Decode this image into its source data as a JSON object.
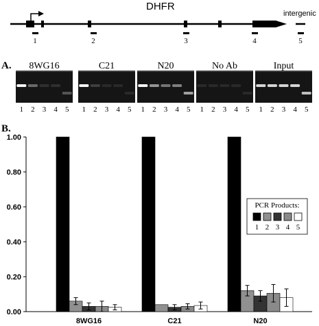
{
  "gene_map": {
    "gene_name": "DHFR",
    "intergenic_label": "intergenic",
    "amplicons": [
      "1",
      "2",
      "3",
      "4",
      "5"
    ]
  },
  "panel_a": {
    "label": "A.",
    "groups": [
      {
        "name": "8WG16",
        "band_intensity": [
          1.0,
          0.35,
          0.08,
          0.08,
          0.25
        ]
      },
      {
        "name": "C21",
        "band_intensity": [
          1.0,
          0.15,
          0.05,
          0.05,
          0.05
        ]
      },
      {
        "name": "N20",
        "band_intensity": [
          1.0,
          0.55,
          0.4,
          0.45,
          0.6
        ]
      },
      {
        "name": "No Ab",
        "band_intensity": [
          0.05,
          0.05,
          0.05,
          0.05,
          0.05
        ]
      },
      {
        "name": "Input",
        "band_intensity": [
          0.85,
          0.85,
          0.85,
          0.85,
          0.75
        ]
      }
    ],
    "lane_labels": [
      "1",
      "2",
      "3",
      "4",
      "5"
    ]
  },
  "panel_b": {
    "label": "B."
  },
  "chart_data": {
    "type": "bar",
    "categories": [
      "8WG16",
      "C21",
      "N20"
    ],
    "ylim": [
      0,
      1.0
    ],
    "yticks": [
      "0.00",
      "0.20",
      "0.40",
      "0.60",
      "0.80",
      "1.00"
    ],
    "grid": false,
    "legend_title": "PCR Products:",
    "legend_position": "right",
    "series": [
      {
        "name": "1",
        "color": "#000000",
        "values": [
          1.0,
          1.0,
          1.0
        ],
        "errors": [
          0,
          0,
          0
        ]
      },
      {
        "name": "2",
        "color": "#909090",
        "values": [
          0.06,
          0.04,
          0.12
        ],
        "errors": [
          0.02,
          0.0,
          0.03
        ]
      },
      {
        "name": "3",
        "color": "#333333",
        "values": [
          0.03,
          0.025,
          0.09
        ],
        "errors": [
          0.02,
          0.015,
          0.03
        ]
      },
      {
        "name": "4",
        "color": "#8a8a8a",
        "values": [
          0.03,
          0.03,
          0.105
        ],
        "errors": [
          0.03,
          0.015,
          0.05
        ]
      },
      {
        "name": "5",
        "color": "#ffffff",
        "values": [
          0.025,
          0.035,
          0.08
        ],
        "errors": [
          0.015,
          0.02,
          0.05
        ]
      }
    ]
  }
}
